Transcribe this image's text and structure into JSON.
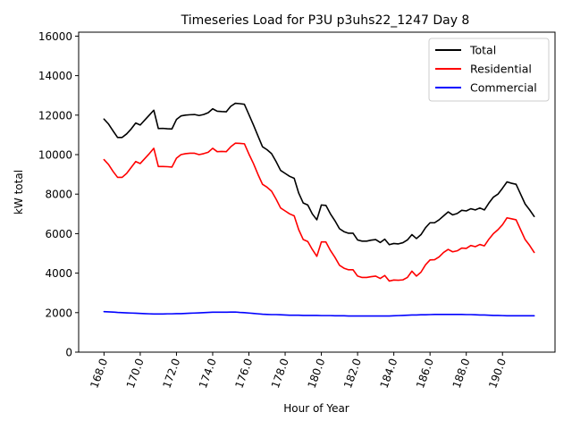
{
  "chart_data": {
    "type": "line",
    "title": "Timeseries Load for P3U p3uhs22_1247  Day 8",
    "xlabel": "Hour of Year",
    "ylabel": "kW total",
    "xlim": [
      166.6,
      192.9
    ],
    "ylim": [
      0,
      16200
    ],
    "xticks": [
      168.0,
      170.0,
      172.0,
      174.0,
      176.0,
      178.0,
      180.0,
      182.0,
      184.0,
      186.0,
      188.0,
      190.0
    ],
    "xtick_labels": [
      "168.0",
      "170.0",
      "172.0",
      "174.0",
      "176.0",
      "178.0",
      "180.0",
      "182.0",
      "184.0",
      "186.0",
      "188.0",
      "190.0"
    ],
    "yticks": [
      0,
      2000,
      4000,
      6000,
      8000,
      10000,
      12000,
      14000,
      16000
    ],
    "ytick_labels": [
      "0",
      "2000",
      "4000",
      "6000",
      "8000",
      "10000",
      "12000",
      "14000",
      "16000"
    ],
    "legend_position": "top-right",
    "x": [
      168.0,
      168.25,
      168.5,
      168.75,
      169.0,
      169.25,
      169.5,
      169.75,
      170.0,
      170.25,
      170.5,
      170.75,
      171.0,
      171.25,
      171.5,
      171.75,
      172.0,
      172.25,
      172.5,
      172.75,
      173.0,
      173.25,
      173.5,
      173.75,
      174.0,
      174.25,
      174.5,
      174.75,
      175.0,
      175.25,
      175.5,
      175.75,
      176.0,
      176.25,
      176.5,
      176.75,
      177.0,
      177.25,
      177.5,
      177.75,
      178.0,
      178.25,
      178.5,
      178.75,
      179.0,
      179.25,
      179.5,
      179.75,
      180.0,
      180.25,
      180.5,
      180.75,
      181.0,
      181.25,
      181.5,
      181.75,
      182.0,
      182.25,
      182.5,
      182.75,
      183.0,
      183.25,
      183.5,
      183.75,
      184.0,
      184.25,
      184.5,
      184.75,
      185.0,
      185.25,
      185.5,
      185.75,
      186.0,
      186.25,
      186.5,
      186.75,
      187.0,
      187.25,
      187.5,
      187.75,
      188.0,
      188.25,
      188.5,
      188.75,
      189.0,
      189.25,
      189.5,
      189.75,
      190.0,
      190.25,
      190.5,
      190.75,
      191.0,
      191.25,
      191.5,
      191.75
    ],
    "series": [
      {
        "name": "Total",
        "color": "#000000",
        "values": [
          11800,
          11550,
          11200,
          10870,
          10870,
          11050,
          11300,
          11600,
          11500,
          11750,
          12000,
          12250,
          11320,
          11330,
          11310,
          11300,
          11780,
          11960,
          12000,
          12020,
          12030,
          11980,
          12030,
          12120,
          12320,
          12200,
          12180,
          12170,
          12450,
          12600,
          12580,
          12550,
          12030,
          11500,
          10950,
          10400,
          10250,
          10050,
          9650,
          9200,
          9050,
          8900,
          8800,
          8050,
          7550,
          7450,
          7000,
          6700,
          7450,
          7430,
          7000,
          6650,
          6250,
          6100,
          6020,
          6020,
          5680,
          5620,
          5620,
          5670,
          5700,
          5550,
          5720,
          5440,
          5500,
          5480,
          5540,
          5680,
          5950,
          5750,
          5950,
          6300,
          6550,
          6550,
          6700,
          6900,
          7100,
          6950,
          7020,
          7180,
          7150,
          7260,
          7200,
          7300,
          7200,
          7550,
          7850,
          8000,
          8300,
          8620,
          8550,
          8500,
          8000,
          7500,
          7200,
          6870
        ]
      },
      {
        "name": "Residential",
        "color": "#ff0000",
        "values": [
          9750,
          9500,
          9150,
          8850,
          8850,
          9050,
          9350,
          9650,
          9550,
          9800,
          10050,
          10320,
          9400,
          9400,
          9390,
          9370,
          9820,
          10000,
          10050,
          10070,
          10070,
          10000,
          10050,
          10120,
          10320,
          10150,
          10160,
          10150,
          10400,
          10580,
          10570,
          10550,
          10030,
          9550,
          9000,
          8500,
          8350,
          8150,
          7750,
          7300,
          7150,
          7000,
          6900,
          6200,
          5700,
          5600,
          5200,
          4850,
          5580,
          5580,
          5150,
          4800,
          4400,
          4250,
          4170,
          4170,
          3850,
          3780,
          3780,
          3820,
          3850,
          3730,
          3880,
          3600,
          3650,
          3640,
          3660,
          3780,
          4100,
          3850,
          4050,
          4420,
          4670,
          4680,
          4820,
          5050,
          5200,
          5080,
          5130,
          5270,
          5250,
          5400,
          5340,
          5450,
          5380,
          5720,
          6000,
          6200,
          6450,
          6800,
          6750,
          6700,
          6200,
          5700,
          5400,
          5050
        ]
      },
      {
        "name": "Commercial",
        "color": "#0000ff",
        "values": [
          2050,
          2040,
          2030,
          2010,
          2000,
          1990,
          1980,
          1970,
          1960,
          1950,
          1940,
          1930,
          1930,
          1930,
          1940,
          1940,
          1950,
          1950,
          1960,
          1970,
          1980,
          1990,
          2000,
          2010,
          2020,
          2020,
          2020,
          2020,
          2030,
          2030,
          2010,
          2000,
          1980,
          1960,
          1940,
          1920,
          1910,
          1900,
          1900,
          1890,
          1880,
          1870,
          1870,
          1870,
          1860,
          1860,
          1860,
          1860,
          1850,
          1850,
          1850,
          1840,
          1840,
          1840,
          1830,
          1830,
          1830,
          1830,
          1830,
          1830,
          1830,
          1830,
          1830,
          1830,
          1840,
          1850,
          1860,
          1870,
          1880,
          1880,
          1890,
          1890,
          1900,
          1910,
          1910,
          1910,
          1910,
          1910,
          1910,
          1910,
          1900,
          1900,
          1890,
          1880,
          1880,
          1870,
          1860,
          1860,
          1850,
          1840,
          1840,
          1840,
          1840,
          1840,
          1840,
          1840
        ]
      }
    ]
  }
}
